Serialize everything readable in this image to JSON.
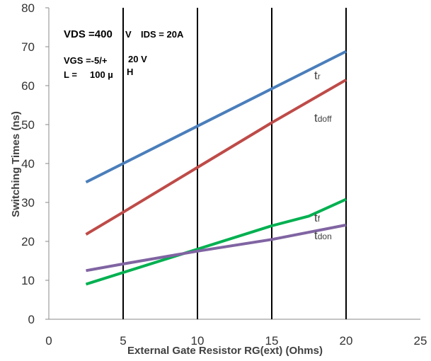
{
  "chart_data": {
    "type": "line",
    "title": "",
    "xlabel": "External Gate Resistor RG(ext) (Ohms)",
    "ylabel": "Switching Times (ns)",
    "xlim": [
      0,
      25
    ],
    "ylim": [
      0,
      80
    ],
    "xticks": [
      0,
      5,
      10,
      15,
      20,
      25
    ],
    "yticks": [
      0,
      10,
      20,
      30,
      40,
      50,
      60,
      70,
      80
    ],
    "grid": "vertical",
    "conditions": {
      "vds": "VDS =400",
      "vds_unit": "V",
      "ids": "IDS = 20A",
      "vgs": "VGS =-5/+",
      "vgs_val": "20 V",
      "l": "L =",
      "l_val": "100 µ",
      "l_unit": "H"
    },
    "series": [
      {
        "name": "tr",
        "main": "t",
        "sub": "r",
        "color": "#4a7ebb",
        "x": [
          2.5,
          5,
          10,
          15,
          20
        ],
        "y": [
          35.2,
          40,
          49.6,
          59.2,
          68.8
        ]
      },
      {
        "name": "tdoff",
        "main": "t",
        "sub": "doff",
        "color": "#be4b48",
        "x": [
          2.5,
          5,
          10,
          15,
          20
        ],
        "y": [
          21.8,
          27.5,
          39,
          50.5,
          61.5
        ]
      },
      {
        "name": "tf",
        "main": "t",
        "sub": "f",
        "color": "#00b050",
        "x": [
          2.5,
          5,
          10,
          15,
          17.5,
          20
        ],
        "y": [
          9,
          12,
          18,
          24,
          26.5,
          30.8
        ]
      },
      {
        "name": "tdon",
        "main": "t",
        "sub": "don",
        "color": "#8064a2",
        "x": [
          2.5,
          5,
          10,
          15,
          20
        ],
        "y": [
          12.5,
          14.2,
          17.5,
          20.5,
          24.2
        ]
      }
    ]
  }
}
